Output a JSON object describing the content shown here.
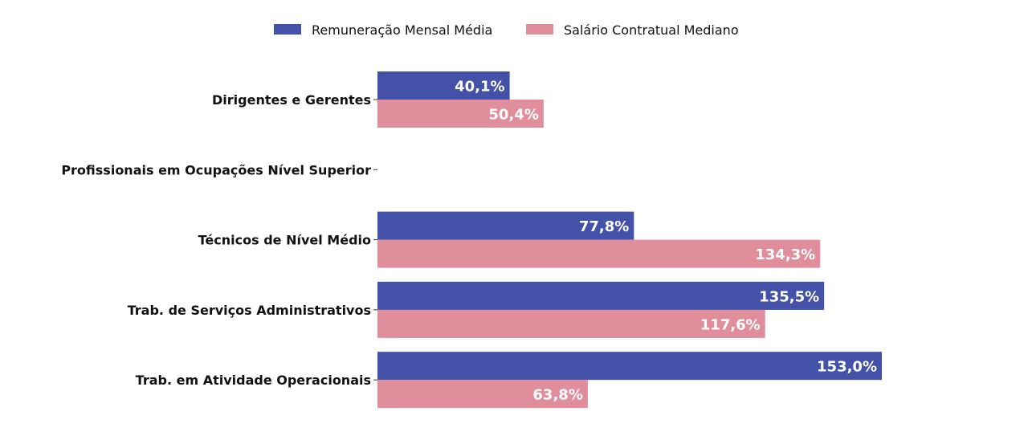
{
  "chart_data": {
    "type": "bar",
    "orientation": "horizontal",
    "categories": [
      "Dirigentes e Gerentes",
      "Profissionais em Ocupações Nível Superior",
      "Técnicos de Nível Médio",
      "Trab. de Serviços Administrativos",
      "Trab. em Atividade Operacionais"
    ],
    "series": [
      {
        "name": "Remuneração Mensal Média",
        "color": "#4352a8",
        "values": [
          40.1,
          null,
          77.8,
          135.5,
          153.0
        ],
        "labels": [
          "40,1%",
          "",
          "77,8%",
          "135,5%",
          "153,0%"
        ]
      },
      {
        "name": "Salário Contratual Mediano",
        "color": "#e08e9c",
        "values": [
          50.4,
          null,
          134.3,
          117.6,
          63.8
        ],
        "labels": [
          "50,4%",
          "",
          "134,3%",
          "117,6%",
          "63,8%"
        ]
      }
    ],
    "xlim": [
      0,
      153
    ],
    "legend_position": "top-center",
    "grid": false,
    "title": "",
    "xlabel": "",
    "ylabel": ""
  }
}
